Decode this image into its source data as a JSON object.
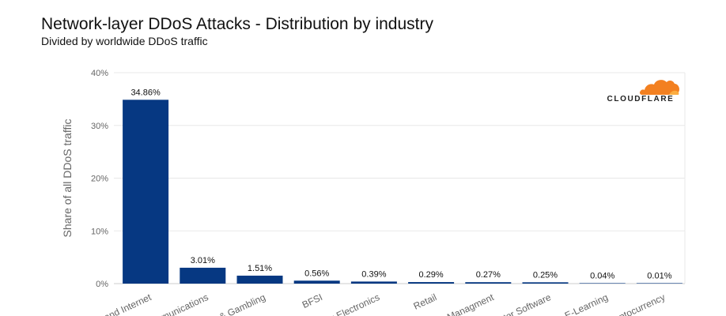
{
  "colors": {
    "bar": "#063882",
    "grid": "#e8e8e8",
    "axis_text": "#666666",
    "label_text": "#111111",
    "logo_orange": "#f38020",
    "logo_light": "#fbad41"
  },
  "logo": {
    "text": "CLOUDFLARE",
    "icon": "cloud-icon"
  },
  "chart_data": {
    "type": "bar",
    "title": "Network-layer DDoS Attacks - Distribution by industry",
    "subtitle": "Divided by worldwide DDoS traffic",
    "xlabel": "",
    "ylabel": "Share of all DDoS traffic",
    "ylim": [
      0,
      40
    ],
    "yticks": [
      "0%",
      "10%",
      "20%",
      "30%",
      "40%"
    ],
    "ytick_values": [
      0,
      10,
      20,
      30,
      40
    ],
    "grid": true,
    "categories": [
      "and Internet",
      "munications",
      "& Gambling",
      "BFSI",
      "r Electronics",
      "Retail",
      "Managment",
      "ter Software",
      "E-Learning",
      "ptocurrency"
    ],
    "values": [
      34.86,
      3.01,
      1.51,
      0.56,
      0.39,
      0.29,
      0.27,
      0.25,
      0.04,
      0.01
    ],
    "value_labels": [
      "34.86%",
      "3.01%",
      "1.51%",
      "0.56%",
      "0.39%",
      "0.29%",
      "0.27%",
      "0.25%",
      "0.04%",
      "0.01%"
    ]
  }
}
